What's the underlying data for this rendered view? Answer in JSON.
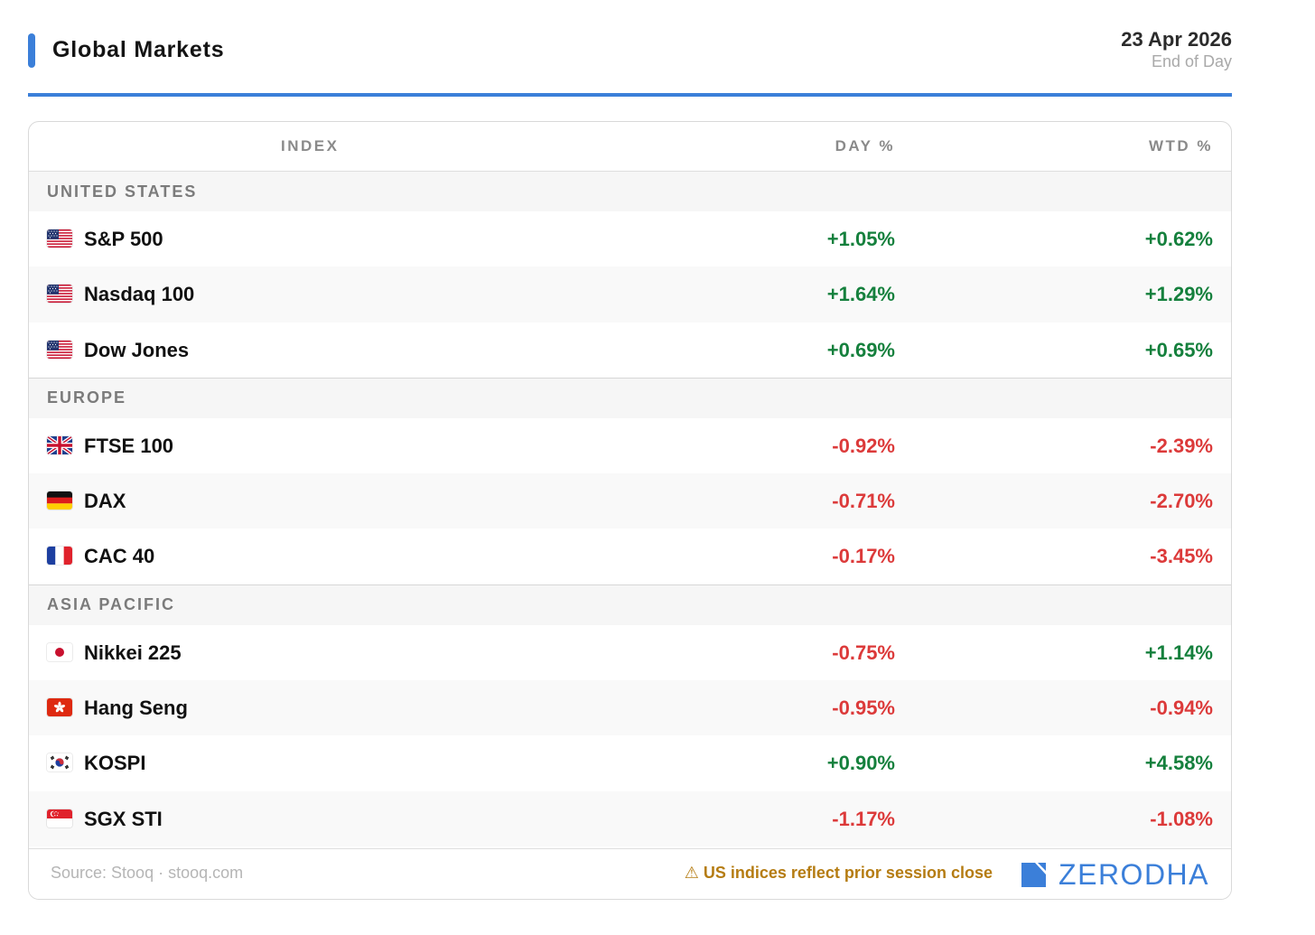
{
  "header": {
    "title": "Global Markets",
    "date": "23 Apr 2026",
    "subtitle": "End of Day",
    "accent_color": "#3b7fd9"
  },
  "table": {
    "columns": {
      "index": "INDEX",
      "day": "DAY %",
      "wtd": "WTD %"
    },
    "regions": [
      {
        "name": "UNITED STATES",
        "rows": [
          {
            "flag": "us-flag-icon",
            "name": "S&P 500",
            "day": "+1.05%",
            "wtd": "+0.62%"
          },
          {
            "flag": "us-flag-icon",
            "name": "Nasdaq 100",
            "day": "+1.64%",
            "wtd": "+1.29%"
          },
          {
            "flag": "us-flag-icon",
            "name": "Dow Jones",
            "day": "+0.69%",
            "wtd": "+0.65%"
          }
        ]
      },
      {
        "name": "EUROPE",
        "rows": [
          {
            "flag": "uk-flag-icon",
            "name": "FTSE 100",
            "day": "-0.92%",
            "wtd": "-2.39%"
          },
          {
            "flag": "de-flag-icon",
            "name": "DAX",
            "day": "-0.71%",
            "wtd": "-2.70%"
          },
          {
            "flag": "fr-flag-icon",
            "name": "CAC 40",
            "day": "-0.17%",
            "wtd": "-3.45%"
          }
        ]
      },
      {
        "name": "ASIA PACIFIC",
        "rows": [
          {
            "flag": "jp-flag-icon",
            "name": "Nikkei 225",
            "day": "-0.75%",
            "wtd": "+1.14%"
          },
          {
            "flag": "hk-flag-icon",
            "name": "Hang Seng",
            "day": "-0.95%",
            "wtd": "-0.94%"
          },
          {
            "flag": "kr-flag-icon",
            "name": "KOSPI",
            "day": "+0.90%",
            "wtd": "+4.58%"
          },
          {
            "flag": "sg-flag-icon",
            "name": "SGX STI",
            "day": "-1.17%",
            "wtd": "-1.08%"
          }
        ]
      }
    ],
    "positive_color": "#15803d",
    "negative_color": "#dc3a3a"
  },
  "footer": {
    "source": "Source: Stooq · stooq.com",
    "note": "⚠ US indices reflect prior session close",
    "brand": "ZERODHA",
    "brand_color": "#3b7fd9"
  }
}
